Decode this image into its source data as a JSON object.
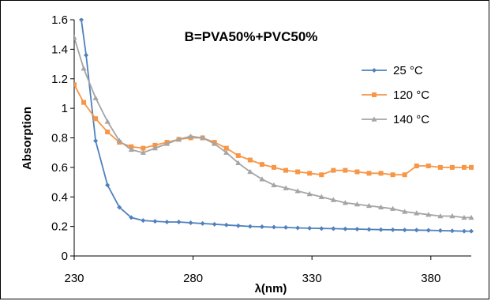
{
  "chart_data": {
    "type": "line",
    "title": "B=PVA50%+PVC50%",
    "xlabel": "λ(nm)",
    "ylabel": "Absorption",
    "xlim": [
      230,
      397
    ],
    "ylim": [
      0,
      1.6
    ],
    "xticks": [
      230,
      280,
      330,
      380
    ],
    "yticks": [
      0,
      0.2,
      0.4,
      0.6,
      0.8,
      1,
      1.2,
      1.4,
      1.6
    ],
    "grid": false,
    "legend": "right",
    "series": [
      {
        "name": "25 °C",
        "color": "#4f81bd",
        "marker": "diamond",
        "x": [
          233,
          235,
          239,
          244,
          249,
          254,
          259,
          264,
          269,
          274,
          279,
          284,
          289,
          294,
          299,
          304,
          309,
          314,
          319,
          324,
          329,
          334,
          339,
          344,
          349,
          354,
          359,
          364,
          369,
          374,
          379,
          384,
          389,
          394,
          397
        ],
        "y": [
          1.6,
          1.36,
          0.78,
          0.48,
          0.33,
          0.26,
          0.24,
          0.235,
          0.23,
          0.23,
          0.225,
          0.22,
          0.215,
          0.21,
          0.205,
          0.2,
          0.198,
          0.195,
          0.193,
          0.19,
          0.188,
          0.186,
          0.185,
          0.183,
          0.182,
          0.18,
          0.178,
          0.177,
          0.176,
          0.175,
          0.174,
          0.172,
          0.17,
          0.168,
          0.168
        ]
      },
      {
        "name": "120 °C",
        "color": "#f79646",
        "marker": "square",
        "x": [
          230,
          234,
          239,
          244,
          249,
          254,
          259,
          264,
          269,
          274,
          279,
          284,
          289,
          294,
          299,
          304,
          309,
          314,
          319,
          324,
          329,
          334,
          339,
          344,
          349,
          354,
          359,
          364,
          369,
          374,
          379,
          384,
          389,
          394,
          397
        ],
        "y": [
          1.16,
          1.04,
          0.93,
          0.84,
          0.77,
          0.74,
          0.73,
          0.75,
          0.77,
          0.79,
          0.8,
          0.8,
          0.77,
          0.73,
          0.68,
          0.65,
          0.62,
          0.6,
          0.58,
          0.57,
          0.56,
          0.55,
          0.58,
          0.58,
          0.57,
          0.56,
          0.56,
          0.55,
          0.55,
          0.61,
          0.61,
          0.6,
          0.6,
          0.6,
          0.6
        ]
      },
      {
        "name": "140 °C",
        "color": "#a5a5a5",
        "marker": "triangle",
        "x": [
          230,
          234,
          239,
          244,
          249,
          254,
          259,
          264,
          269,
          274,
          279,
          284,
          289,
          294,
          299,
          304,
          309,
          314,
          319,
          324,
          329,
          334,
          339,
          344,
          349,
          354,
          359,
          364,
          369,
          374,
          379,
          384,
          389,
          394,
          397
        ],
        "y": [
          1.48,
          1.27,
          1.07,
          0.91,
          0.78,
          0.72,
          0.7,
          0.73,
          0.76,
          0.79,
          0.81,
          0.8,
          0.76,
          0.7,
          0.63,
          0.57,
          0.52,
          0.48,
          0.46,
          0.44,
          0.42,
          0.4,
          0.38,
          0.36,
          0.35,
          0.34,
          0.33,
          0.32,
          0.3,
          0.29,
          0.28,
          0.27,
          0.27,
          0.26,
          0.26
        ]
      }
    ]
  }
}
